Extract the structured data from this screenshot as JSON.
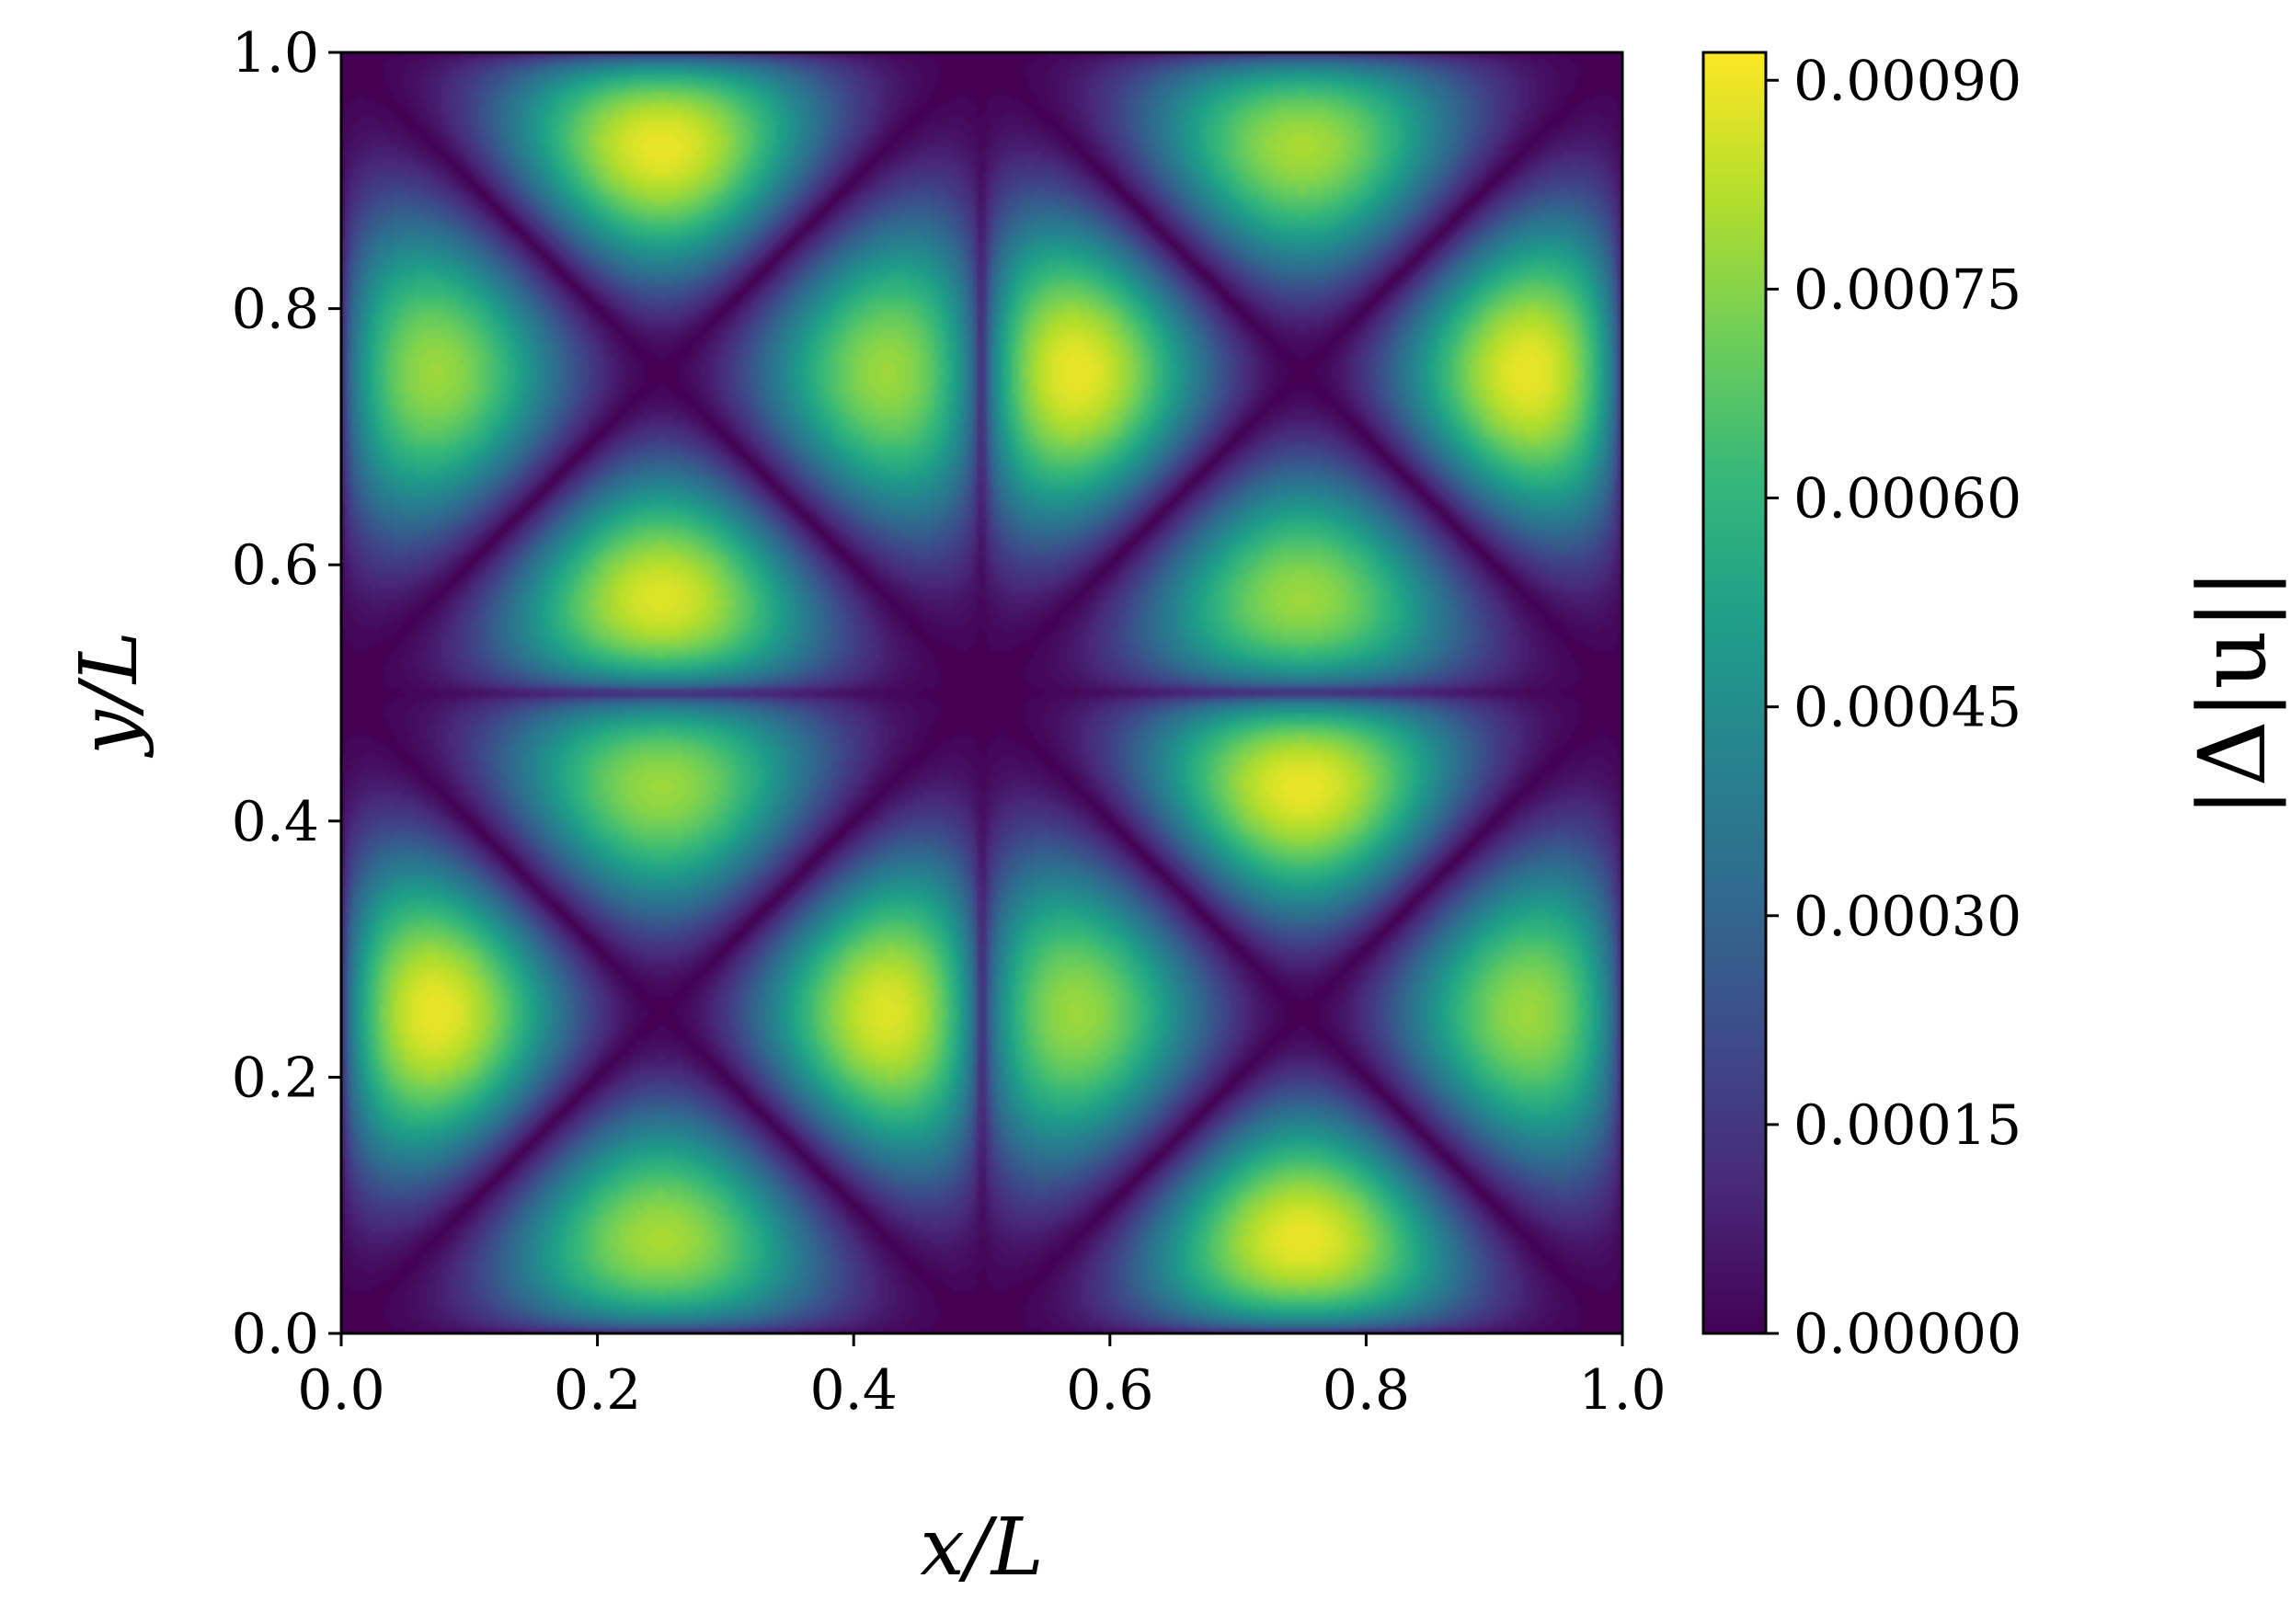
{
  "chart_data": {
    "type": "heatmap",
    "title": "",
    "xlabel": "x/L",
    "ylabel": "y/L",
    "xlim": [
      0.0,
      1.0
    ],
    "ylim": [
      0.0,
      1.0
    ],
    "x_ticks": [
      "0.0",
      "0.2",
      "0.4",
      "0.6",
      "0.8",
      "1.0"
    ],
    "y_ticks": [
      "0.0",
      "0.2",
      "0.4",
      "0.6",
      "0.8",
      "1.0"
    ],
    "colorbar": {
      "label": "|Δ|u||",
      "colormap": "viridis",
      "range": [
        0.0,
        0.00092
      ],
      "ticks": [
        "0.00000",
        "0.00015",
        "0.00030",
        "0.00045",
        "0.00060",
        "0.00075",
        "0.00090"
      ],
      "tick_values": [
        0.0,
        0.00015,
        0.0003,
        0.00045,
        0.0006,
        0.00075,
        0.0009
      ]
    },
    "field": {
      "description_of_pattern": "four quadrants, each with four lobes separated by diagonal zero-lines through quadrant centers",
      "quadrant_centers": [
        [
          0.25,
          0.25
        ],
        [
          0.75,
          0.25
        ],
        [
          0.25,
          0.75
        ],
        [
          0.75,
          0.75
        ]
      ],
      "peaks": [
        {
          "x": 0.25,
          "y": 0.875,
          "value": 0.00092
        },
        {
          "x": 0.125,
          "y": 0.75,
          "value": 0.0008
        },
        {
          "x": 0.375,
          "y": 0.75,
          "value": 0.0008
        },
        {
          "x": 0.25,
          "y": 0.625,
          "value": 0.0009
        },
        {
          "x": 0.75,
          "y": 0.875,
          "value": 0.00082
        },
        {
          "x": 0.625,
          "y": 0.75,
          "value": 0.00092
        },
        {
          "x": 0.875,
          "y": 0.75,
          "value": 0.00092
        },
        {
          "x": 0.75,
          "y": 0.625,
          "value": 0.0008
        },
        {
          "x": 0.25,
          "y": 0.375,
          "value": 0.0008
        },
        {
          "x": 0.125,
          "y": 0.25,
          "value": 0.00092
        },
        {
          "x": 0.375,
          "y": 0.25,
          "value": 0.0009
        },
        {
          "x": 0.25,
          "y": 0.125,
          "value": 0.00082
        },
        {
          "x": 0.75,
          "y": 0.375,
          "value": 0.00092
        },
        {
          "x": 0.625,
          "y": 0.25,
          "value": 0.0008
        },
        {
          "x": 0.875,
          "y": 0.25,
          "value": 0.0008
        },
        {
          "x": 0.75,
          "y": 0.125,
          "value": 0.00092
        }
      ]
    },
    "colors": {
      "viridis": [
        "#440154",
        "#482878",
        "#3e4989",
        "#31688e",
        "#26828e",
        "#1f9e89",
        "#35b779",
        "#6ece58",
        "#b5de2b",
        "#fde725"
      ]
    }
  }
}
